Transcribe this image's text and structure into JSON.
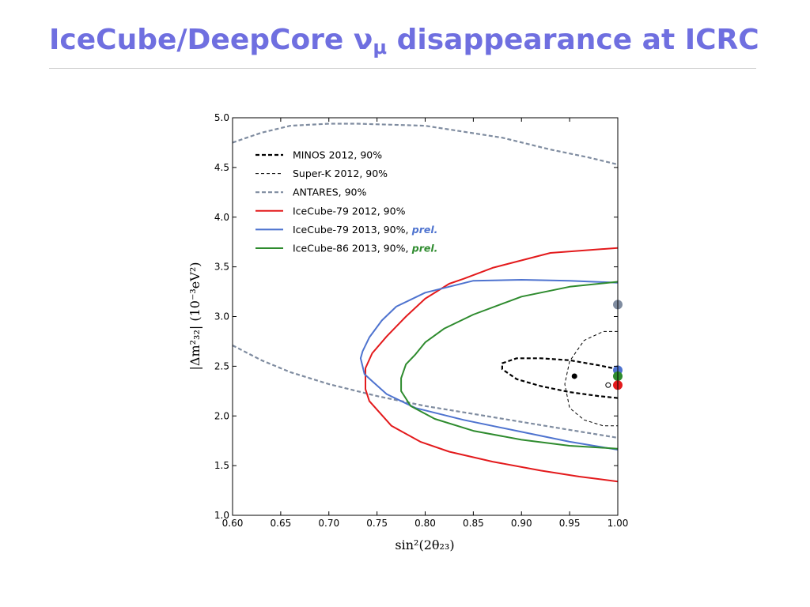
{
  "slide": {
    "title_main": "IceCube/DeepCore ν",
    "title_sub": "μ",
    "title_tail": " disappearance at ICRC"
  },
  "chart_data": {
    "type": "line",
    "xlabel": "sin²(2θ₂₃)",
    "ylabel": "|Δm²₃₂| (10⁻³eV²)",
    "xlim": [
      0.6,
      1.0
    ],
    "ylim": [
      1.0,
      5.0
    ],
    "x_ticks": [
      0.6,
      0.65,
      0.7,
      0.75,
      0.8,
      0.85,
      0.9,
      0.95,
      1.0
    ],
    "x_tick_labels": [
      "0.60",
      "0.65",
      "0.70",
      "0.75",
      "0.80",
      "0.85",
      "0.90",
      "0.95",
      "1.00"
    ],
    "y_ticks": [
      1.0,
      1.5,
      2.0,
      2.5,
      3.0,
      3.5,
      4.0,
      4.5,
      5.0
    ],
    "y_tick_labels": [
      "1.0",
      "1.5",
      "2.0",
      "2.5",
      "3.0",
      "3.5",
      "4.0",
      "4.5",
      "5.0"
    ],
    "grid": false,
    "legend_position": "top-left",
    "series": [
      {
        "name": "MINOS 2012, 90%",
        "color": "#000000",
        "style": "dashed-thick",
        "x": [
          1.0,
          0.98,
          0.95,
          0.92,
          0.895,
          0.88,
          0.88,
          0.895,
          0.92,
          0.95,
          0.98,
          1.0
        ],
        "y": [
          2.18,
          2.2,
          2.24,
          2.3,
          2.37,
          2.47,
          2.53,
          2.58,
          2.58,
          2.56,
          2.51,
          2.47
        ]
      },
      {
        "name": "Super-K 2012, 90%",
        "color": "#000000",
        "style": "dashed-thin",
        "x": [
          1.0,
          0.985,
          0.965,
          0.95,
          0.945,
          0.95,
          0.965,
          0.985,
          1.0
        ],
        "y": [
          2.85,
          2.85,
          2.76,
          2.55,
          2.32,
          2.08,
          1.96,
          1.9,
          1.9
        ]
      },
      {
        "name": "ANTARES, 90%",
        "color": "#7f8ca0",
        "style": "dashed-thick",
        "segments": [
          {
            "x": [
              0.6,
              0.63,
              0.66,
              0.7,
              0.73,
              0.8,
              0.88,
              0.93,
              0.97,
              1.0
            ],
            "y": [
              4.75,
              4.85,
              4.92,
              4.94,
              4.94,
              4.92,
              4.8,
              4.68,
              4.6,
              4.53
            ]
          },
          {
            "x": [
              0.6,
              0.63,
              0.66,
              0.7,
              0.75,
              0.8,
              0.85,
              0.9,
              0.95,
              1.0
            ],
            "y": [
              2.71,
              2.56,
              2.44,
              2.32,
              2.2,
              2.1,
              2.02,
              1.94,
              1.86,
              1.78
            ]
          }
        ]
      },
      {
        "name": "IceCube-79 2012, 90%",
        "color": "#e31a1c",
        "style": "solid",
        "x": [
          1.0,
          0.93,
          0.87,
          0.84,
          0.825,
          0.8,
          0.78,
          0.76,
          0.745,
          0.738,
          0.738,
          0.742,
          0.765,
          0.795,
          0.825,
          0.87,
          0.92,
          0.96,
          1.0
        ],
        "y": [
          3.69,
          3.64,
          3.49,
          3.38,
          3.33,
          3.18,
          3.0,
          2.8,
          2.63,
          2.48,
          2.27,
          2.15,
          1.9,
          1.74,
          1.64,
          1.54,
          1.45,
          1.39,
          1.34
        ]
      },
      {
        "name": "IceCube-79 2013, 90%,",
        "name_suffix": "prel.",
        "color": "#4e73cf",
        "style": "solid",
        "x": [
          1.0,
          0.95,
          0.9,
          0.85,
          0.8,
          0.77,
          0.755,
          0.742,
          0.735,
          0.733,
          0.737,
          0.745,
          0.76,
          0.79,
          0.84,
          0.9,
          0.95,
          1.0
        ],
        "y": [
          3.34,
          3.36,
          3.37,
          3.36,
          3.24,
          3.1,
          2.96,
          2.79,
          2.65,
          2.58,
          2.42,
          2.35,
          2.22,
          2.08,
          1.96,
          1.84,
          1.74,
          1.66
        ]
      },
      {
        "name": "IceCube-86 2013, 90%,",
        "name_suffix": "prel.",
        "color": "#2e8b2e",
        "style": "solid",
        "x": [
          1.0,
          0.95,
          0.9,
          0.85,
          0.82,
          0.8,
          0.79,
          0.78,
          0.775,
          0.775,
          0.785,
          0.81,
          0.85,
          0.9,
          0.95,
          1.0
        ],
        "y": [
          3.35,
          3.3,
          3.2,
          3.02,
          2.88,
          2.74,
          2.62,
          2.52,
          2.38,
          2.25,
          2.1,
          1.97,
          1.85,
          1.76,
          1.7,
          1.67
        ]
      }
    ],
    "points": [
      {
        "x": 0.955,
        "y": 2.4,
        "color": "#000000",
        "marker": "filled-small"
      },
      {
        "x": 0.99,
        "y": 2.31,
        "color": "#000000",
        "marker": "open-small"
      },
      {
        "x": 1.0,
        "y": 3.12,
        "color": "#7f8ca0",
        "marker": "filled"
      },
      {
        "x": 1.0,
        "y": 2.46,
        "color": "#4e73cf",
        "marker": "filled"
      },
      {
        "x": 1.0,
        "y": 2.4,
        "color": "#2e8b2e",
        "marker": "filled"
      },
      {
        "x": 1.0,
        "y": 2.31,
        "color": "#e31a1c",
        "marker": "filled"
      }
    ]
  }
}
